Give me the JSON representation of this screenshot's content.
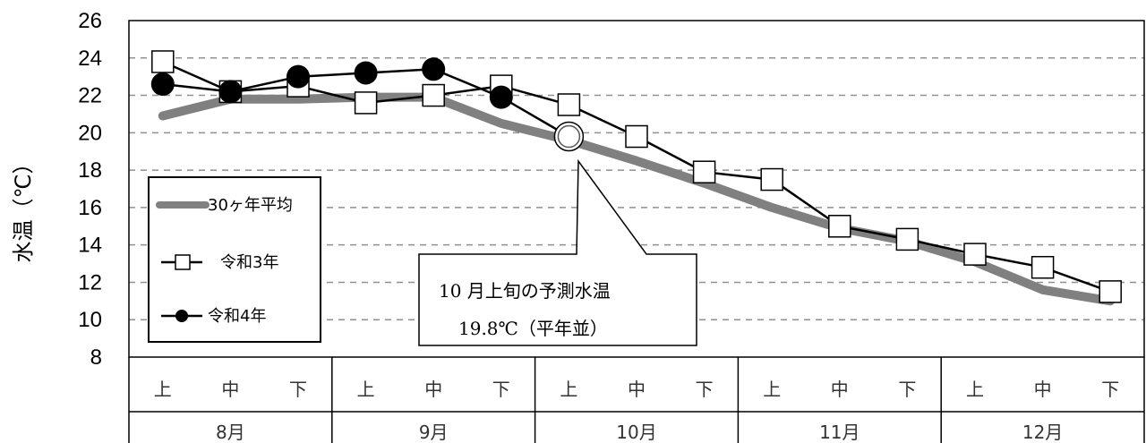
{
  "chart_data": {
    "type": "line",
    "ylabel": "水温（℃）",
    "ylim": [
      8,
      26
    ],
    "yticks": [
      8,
      10,
      12,
      14,
      16,
      18,
      20,
      22,
      24,
      26
    ],
    "grid": "dashed-horizontal",
    "subcategories": [
      "上",
      "中",
      "下",
      "上",
      "中",
      "下",
      "上",
      "中",
      "下",
      "上",
      "中",
      "下",
      "上",
      "中",
      "下"
    ],
    "months": [
      "8月",
      "9月",
      "10月",
      "11月",
      "12月"
    ],
    "series": [
      {
        "name": "30ヶ年平均",
        "color": "#808080",
        "marker": "none",
        "values": [
          20.9,
          21.8,
          21.8,
          21.9,
          21.9,
          20.5,
          19.6,
          18.5,
          17.3,
          16.0,
          14.9,
          14.2,
          13.1,
          11.6,
          11.0
        ]
      },
      {
        "name": "令和3年",
        "color": "#000000",
        "marker": "square",
        "values": [
          23.8,
          22.2,
          22.5,
          21.6,
          22.0,
          22.5,
          21.5,
          19.8,
          17.9,
          17.5,
          15.0,
          14.3,
          13.5,
          12.8,
          11.5
        ]
      },
      {
        "name": "令和4年",
        "color": "#000000",
        "marker": "circle",
        "values": [
          22.6,
          22.2,
          23.0,
          23.2,
          23.4,
          21.9,
          null,
          null,
          null,
          null,
          null,
          null,
          null,
          null,
          null
        ]
      }
    ],
    "forecast": {
      "index": 6,
      "value": 19.8
    },
    "legend_position": "left-middle",
    "annotation": {
      "line1": "10 月上旬の予測水温",
      "line2": "19.8℃（平年並）"
    }
  }
}
